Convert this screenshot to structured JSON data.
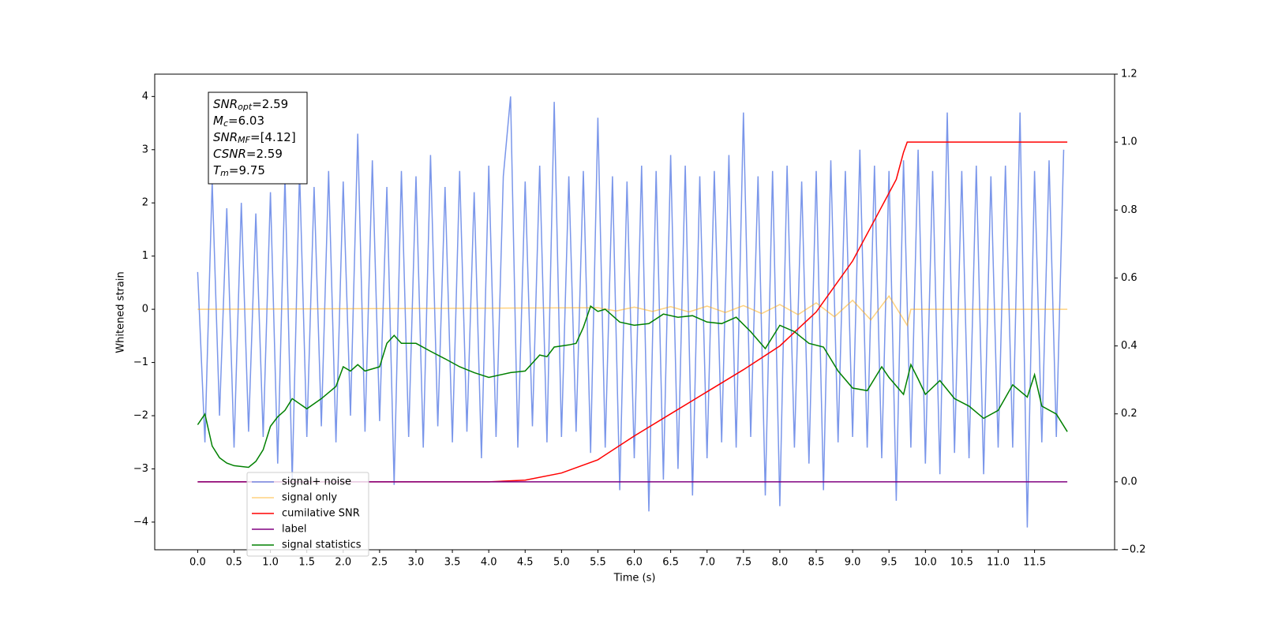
{
  "chart_data": {
    "type": "line",
    "xlabel": "Time (s)",
    "ylabel": "Whitened strain",
    "xlim": [
      -0.59,
      12.6
    ],
    "ylim": [
      -4.52,
      4.42
    ],
    "y2lim": [
      -0.2,
      1.2
    ],
    "xticks": [
      {
        "value": 0,
        "label": "0.0"
      },
      {
        "value": 0.5,
        "label": "0.5"
      },
      {
        "value": 1,
        "label": "1.0"
      },
      {
        "value": 1.5,
        "label": "1.5"
      },
      {
        "value": 2,
        "label": "2.0"
      },
      {
        "value": 2.5,
        "label": "2.5"
      },
      {
        "value": 3,
        "label": "3.0"
      },
      {
        "value": 3.5,
        "label": "3.5"
      },
      {
        "value": 4,
        "label": "4.0"
      },
      {
        "value": 4.5,
        "label": "4.5"
      },
      {
        "value": 5,
        "label": "5.0"
      },
      {
        "value": 5.5,
        "label": "5.5"
      },
      {
        "value": 6,
        "label": "6.0"
      },
      {
        "value": 6.5,
        "label": "6.5"
      },
      {
        "value": 7,
        "label": "7.0"
      },
      {
        "value": 7.5,
        "label": "7.5"
      },
      {
        "value": 8,
        "label": "8.0"
      },
      {
        "value": 8.5,
        "label": "8.5"
      },
      {
        "value": 9,
        "label": "9.0"
      },
      {
        "value": 9.5,
        "label": "9.5"
      },
      {
        "value": 10,
        "label": "10.0"
      },
      {
        "value": 10.5,
        "label": "10.5"
      },
      {
        "value": 11,
        "label": "11.0"
      },
      {
        "value": 11.5,
        "label": "11.5"
      }
    ],
    "yticks": [
      {
        "value": -4,
        "label": "−4"
      },
      {
        "value": -3,
        "label": "−3"
      },
      {
        "value": -2,
        "label": "−2"
      },
      {
        "value": -1,
        "label": "−1"
      },
      0,
      1,
      2,
      3,
      4
    ],
    "y2ticks": [
      {
        "value": -0.2,
        "label": "−0.2"
      },
      {
        "value": 0,
        "label": "0.0"
      },
      0.2,
      0.4,
      0.6,
      0.8,
      {
        "value": 1,
        "label": "1.0"
      },
      1.2
    ],
    "annotation": [
      {
        "main": "SNR",
        "sub": "opt",
        "rest": "=2.59"
      },
      {
        "main": "M",
        "sub": "c",
        "rest": "=6.03"
      },
      {
        "main": "SNR",
        "sub": "MF",
        "rest": "=[4.12]"
      },
      {
        "main": "CSNR",
        "sub": "",
        "rest": "=2.59"
      },
      {
        "main": "T",
        "sub": "m",
        "rest": "=9.75"
      }
    ],
    "series": [
      {
        "name": "signal+ noise",
        "color": "#4169e1",
        "alpha": 0.7,
        "x": [
          0,
          0.1,
          0.2,
          0.3,
          0.4,
          0.5,
          0.6,
          0.7,
          0.8,
          0.9,
          1,
          1.1,
          1.2,
          1.3,
          1.4,
          1.5,
          1.6,
          1.7,
          1.8,
          1.9,
          2,
          2.1,
          2.2,
          2.3,
          2.4,
          2.5,
          2.6,
          2.7,
          2.8,
          2.9,
          3,
          3.1,
          3.2,
          3.3,
          3.4,
          3.5,
          3.6,
          3.7,
          3.8,
          3.9,
          4,
          4.1,
          4.2,
          4.3,
          4.4,
          4.5,
          4.6,
          4.7,
          4.8,
          4.9,
          5,
          5.1,
          5.2,
          5.3,
          5.4,
          5.5,
          5.6,
          5.7,
          5.8,
          5.9,
          6,
          6.1,
          6.2,
          6.3,
          6.4,
          6.5,
          6.6,
          6.7,
          6.8,
          6.9,
          7,
          7.1,
          7.2,
          7.3,
          7.4,
          7.5,
          7.6,
          7.7,
          7.8,
          7.9,
          8,
          8.1,
          8.2,
          8.3,
          8.4,
          8.5,
          8.6,
          8.7,
          8.8,
          8.9,
          9,
          9.1,
          9.2,
          9.3,
          9.4,
          9.5,
          9.6,
          9.7,
          9.8,
          9.9,
          10,
          10.1,
          10.2,
          10.3,
          10.4,
          10.5,
          10.6,
          10.7,
          10.8,
          10.9,
          11,
          11.1,
          11.2,
          11.3,
          11.4,
          11.5,
          11.6,
          11.7,
          11.8,
          11.9
        ],
        "values": [
          0.7,
          -2.5,
          2.4,
          -2.0,
          1.9,
          -2.6,
          2.0,
          -2.3,
          1.8,
          -2.4,
          2.2,
          -2.9,
          2.5,
          -3.2,
          2.6,
          -2.4,
          2.3,
          -2.2,
          2.6,
          -2.5,
          2.4,
          -2.0,
          3.3,
          -2.3,
          2.8,
          -2.1,
          2.3,
          -3.3,
          2.6,
          -2.4,
          2.5,
          -2.6,
          2.9,
          -2.2,
          2.3,
          -2.5,
          2.6,
          -2.3,
          2.2,
          -2.8,
          2.7,
          -2.4,
          2.5,
          4.0,
          -2.6,
          2.4,
          -2.2,
          2.7,
          -2.5,
          3.9,
          -2.4,
          2.5,
          -2.3,
          2.6,
          -2.7,
          3.6,
          -2.6,
          2.5,
          -3.4,
          2.4,
          -2.8,
          2.7,
          -3.8,
          2.6,
          -3.2,
          2.9,
          -3.0,
          2.7,
          -3.5,
          2.5,
          -2.8,
          2.6,
          -2.5,
          2.9,
          -2.6,
          3.7,
          -2.4,
          2.5,
          -3.5,
          2.6,
          -3.7,
          2.7,
          -2.6,
          2.4,
          -2.9,
          2.6,
          -3.4,
          2.8,
          -2.5,
          2.6,
          -2.4,
          3.0,
          -2.6,
          2.7,
          -2.8,
          2.6,
          -3.6,
          2.8,
          -2.6,
          3.0,
          -2.9,
          2.6,
          -3.1,
          3.7,
          -2.7,
          2.6,
          -2.8,
          2.7,
          -3.1,
          2.5,
          -2.6,
          2.7,
          -2.6,
          3.7,
          -4.1,
          2.6,
          -2.5,
          2.8,
          -2.4,
          3.0
        ]
      },
      {
        "name": "signal only",
        "color": "#ffa500",
        "alpha": 0.5,
        "x": [
          0,
          5.5,
          5.75,
          6,
          6.25,
          6.5,
          6.75,
          7,
          7.25,
          7.5,
          7.75,
          8,
          8.25,
          8.5,
          8.75,
          9,
          9.25,
          9.5,
          9.75,
          9.8,
          11.95
        ],
        "values": [
          0,
          0.03,
          -0.03,
          0.04,
          -0.04,
          0.05,
          -0.05,
          0.06,
          -0.06,
          0.07,
          -0.08,
          0.09,
          -0.1,
          0.12,
          -0.14,
          0.17,
          -0.2,
          0.25,
          -0.3,
          0,
          0
        ]
      },
      {
        "name": "cumilative SNR",
        "color": "#ff0000",
        "alpha": 1,
        "axis": "y2",
        "x": [
          0,
          4,
          4.5,
          5,
          5.5,
          6,
          6.5,
          7,
          7.5,
          8,
          8.5,
          9,
          9.3,
          9.5,
          9.6,
          9.7,
          9.75,
          11.95
        ],
        "values": [
          0,
          0,
          0.005,
          0.026,
          0.065,
          0.135,
          0.2,
          0.265,
          0.33,
          0.4,
          0.5,
          0.65,
          0.77,
          0.85,
          0.89,
          0.97,
          1,
          1
        ]
      },
      {
        "name": "label",
        "color": "#800080",
        "alpha": 1,
        "axis": "y2",
        "x": [
          0,
          11.95
        ],
        "values": [
          0,
          0
        ]
      },
      {
        "name": "signal statistics",
        "color": "#008000",
        "alpha": 1,
        "x": [
          0,
          0.1,
          0.2,
          0.3,
          0.4,
          0.5,
          0.7,
          0.8,
          0.9,
          1,
          1.1,
          1.2,
          1.3,
          1.5,
          1.7,
          1.9,
          2,
          2.1,
          2.2,
          2.3,
          2.5,
          2.6,
          2.7,
          2.8,
          3,
          3.2,
          3.4,
          3.6,
          3.8,
          4,
          4.3,
          4.5,
          4.7,
          4.8,
          4.9,
          5.1,
          5.2,
          5.3,
          5.4,
          5.5,
          5.6,
          5.8,
          6,
          6.2,
          6.4,
          6.6,
          6.8,
          7,
          7.2,
          7.4,
          7.6,
          7.8,
          8,
          8.2,
          8.4,
          8.6,
          8.8,
          9,
          9.2,
          9.4,
          9.5,
          9.7,
          9.8,
          9.9,
          10,
          10.2,
          10.4,
          10.6,
          10.8,
          11,
          11.2,
          11.4,
          11.5,
          11.6,
          11.8,
          11.95
        ],
        "values": [
          -2.17,
          -1.97,
          -2.57,
          -2.79,
          -2.89,
          -2.94,
          -2.97,
          -2.86,
          -2.64,
          -2.2,
          -2.02,
          -1.9,
          -1.68,
          -1.87,
          -1.68,
          -1.45,
          -1.08,
          -1.16,
          -1.04,
          -1.16,
          -1.08,
          -0.64,
          -0.49,
          -0.64,
          -0.64,
          -0.79,
          -0.93,
          -1.08,
          -1.19,
          -1.28,
          -1.19,
          -1.16,
          -0.86,
          -0.89,
          -0.71,
          -0.67,
          -0.64,
          -0.34,
          0.06,
          -0.04,
          0,
          -0.24,
          -0.3,
          -0.27,
          -0.09,
          -0.15,
          -0.12,
          -0.24,
          -0.27,
          -0.15,
          -0.42,
          -0.74,
          -0.3,
          -0.42,
          -0.64,
          -0.71,
          -1.16,
          -1.48,
          -1.53,
          -1.08,
          -1.28,
          -1.6,
          -1.04,
          -1.31,
          -1.6,
          -1.34,
          -1.68,
          -1.82,
          -2.05,
          -1.9,
          -1.42,
          -1.65,
          -1.23,
          -1.82,
          -1.97,
          -2.3
        ]
      }
    ]
  }
}
